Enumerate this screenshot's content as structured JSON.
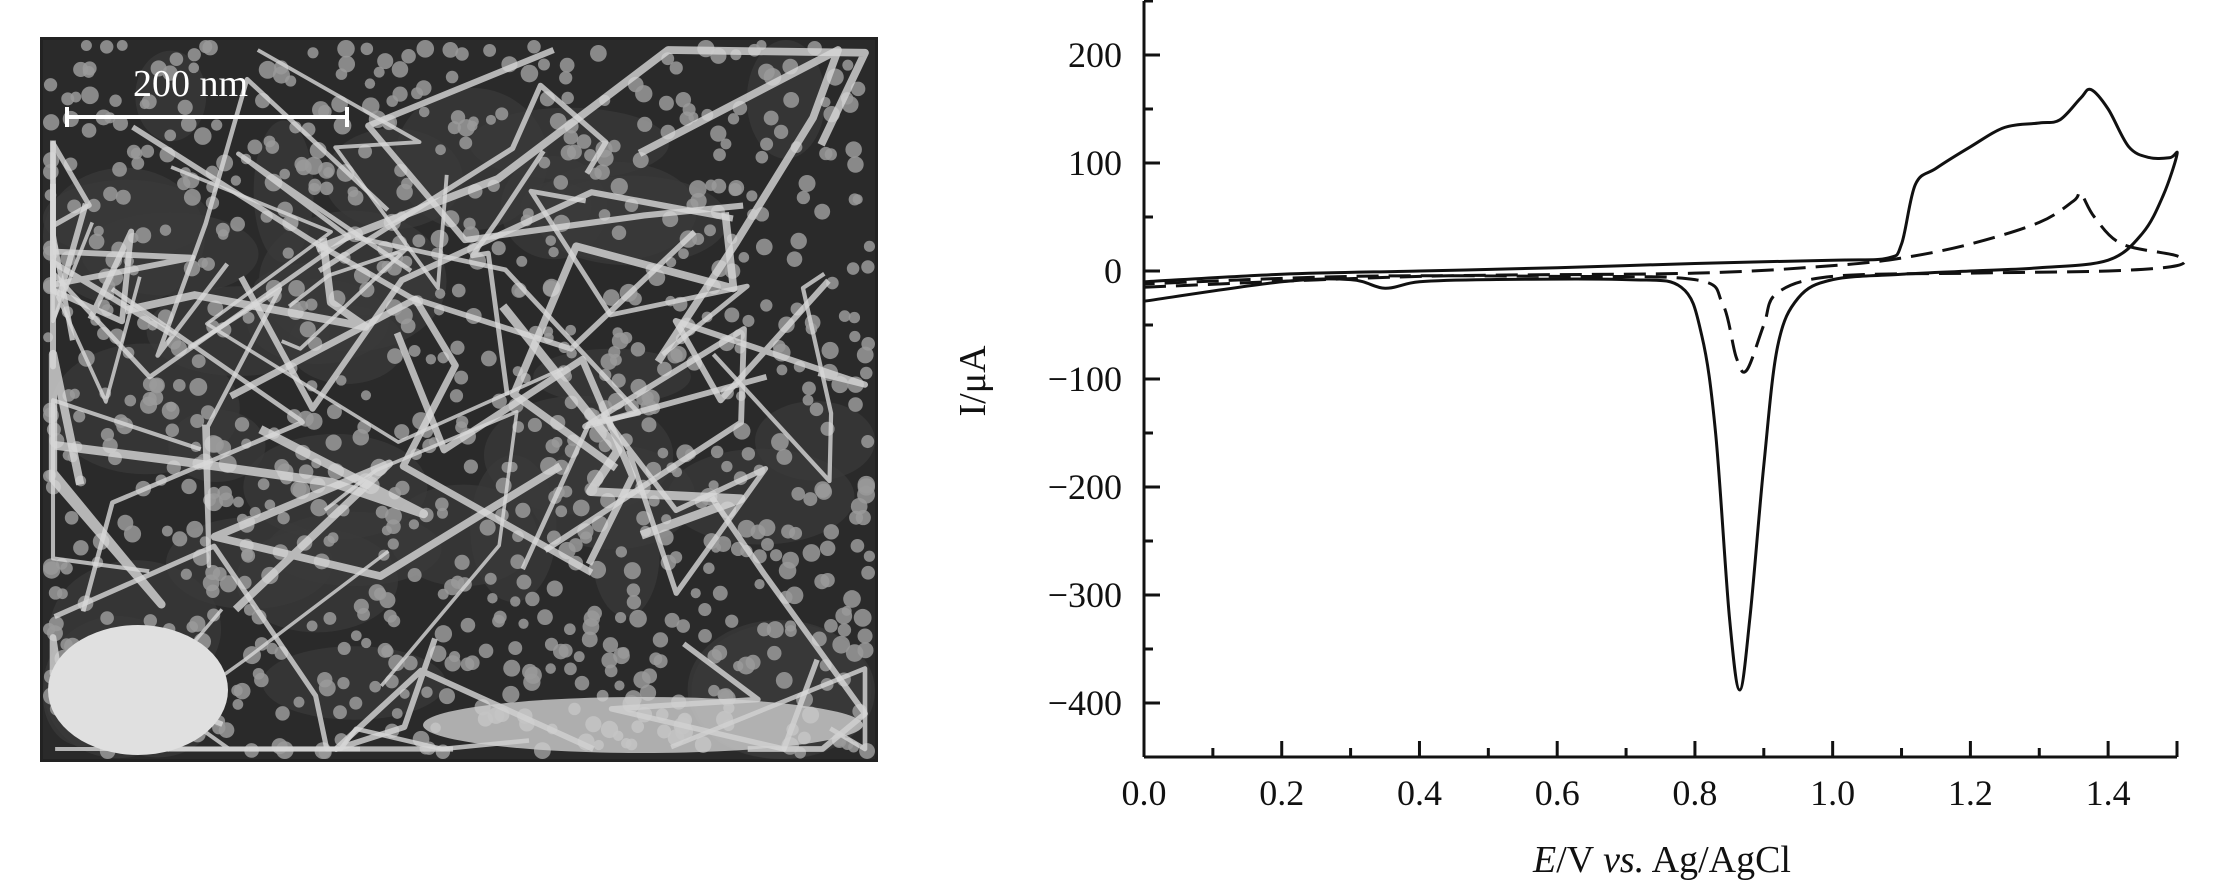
{
  "sem_image": {
    "scale_bar_label": "200 nm"
  },
  "chart_data": {
    "type": "line",
    "title": "",
    "xlabel": "E/V vs. Ag/AgCl",
    "xlabel_parts": {
      "var": "E",
      "unit": "/V ",
      "vs": "vs.",
      "ref": " Ag/AgCl"
    },
    "ylabel": "I/μA",
    "ylabel_parts": {
      "var": "I",
      "unit": "/μA"
    },
    "xlim": [
      0,
      1.5
    ],
    "ylim": [
      -450,
      250
    ],
    "xticks": [
      0.0,
      0.2,
      0.4,
      0.6,
      0.8,
      1.0,
      1.2,
      1.4
    ],
    "xtick_labels": [
      "0.0",
      "0.2",
      "0.4",
      "0.6",
      "0.8",
      "1.0",
      "1.2",
      "1.4"
    ],
    "yticks": [
      200,
      100,
      0,
      -100,
      -200,
      -300,
      -400
    ],
    "ytick_labels": [
      "200",
      "100",
      "0",
      "−100",
      "−200",
      "−300",
      "−400"
    ],
    "grid": false,
    "series": [
      {
        "name": "solid",
        "style": "solid",
        "color": "#111111",
        "x": [
          0,
          0.2,
          0.4,
          0.6,
          0.8,
          1.0,
          1.08,
          1.1,
          1.12,
          1.15,
          1.2,
          1.25,
          1.3,
          1.33,
          1.36,
          1.375,
          1.4,
          1.43,
          1.46,
          1.49,
          1.5,
          1.48,
          1.45,
          1.4,
          1.3,
          1.2,
          1.1,
          1.0,
          0.95,
          0.92,
          0.9,
          0.88,
          0.865,
          0.85,
          0.83,
          0.81,
          0.78,
          0.7,
          0.5,
          0.4,
          0.35,
          0.3,
          0.2,
          0
        ],
        "y": [
          -10,
          -3,
          0,
          3,
          7,
          10,
          12,
          25,
          80,
          95,
          115,
          133,
          137,
          140,
          160,
          168,
          150,
          115,
          105,
          105,
          108,
          70,
          35,
          10,
          3,
          0,
          -3,
          -8,
          -25,
          -70,
          -180,
          -320,
          -388,
          -320,
          -150,
          -60,
          -15,
          -8,
          -8,
          -10,
          -16,
          -8,
          -10,
          -28
        ]
      },
      {
        "name": "dashed",
        "style": "dashed",
        "color": "#111111",
        "x": [
          0,
          0.4,
          0.8,
          1.0,
          1.1,
          1.2,
          1.3,
          1.35,
          1.36,
          1.38,
          1.42,
          1.5,
          1.5,
          1.4,
          1.2,
          1.0,
          0.92,
          0.9,
          0.875,
          0.86,
          0.84,
          0.8,
          0.6,
          0.3,
          0
        ],
        "y": [
          -15,
          -5,
          -2,
          5,
          12,
          25,
          45,
          65,
          72,
          50,
          25,
          14,
          5,
          0,
          -2,
          -5,
          -20,
          -50,
          -92,
          -80,
          -30,
          -8,
          -5,
          -5,
          -12
        ]
      }
    ]
  }
}
